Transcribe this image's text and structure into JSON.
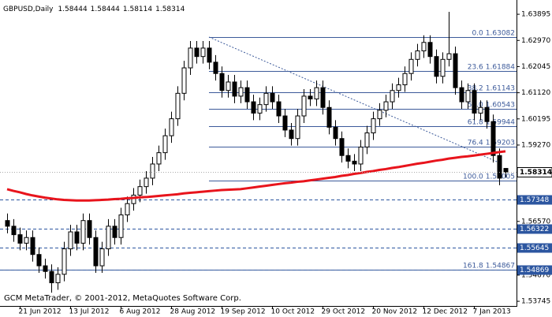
{
  "chart_data": {
    "type": "candlestick",
    "title": "GBPUSD,Daily",
    "footer": "GCM MetaTrader, © 2001-2012, MetaQuotes Software Corp.",
    "categories": [
      null,
      null,
      "21 Jun 2012",
      null,
      null,
      null,
      null,
      null,
      null,
      null,
      "13 Jul 2012",
      null,
      null,
      null,
      null,
      null,
      null,
      null,
      "6 Aug 2012",
      null,
      null,
      null,
      null,
      null,
      null,
      null,
      "28 Aug 2012",
      null,
      null,
      null,
      null,
      null,
      null,
      null,
      "19 Sep 2012",
      null,
      null,
      null,
      null,
      null,
      null,
      null,
      "10 Oct 2012",
      null,
      null,
      null,
      null,
      null,
      null,
      null,
      "29 Oct 2012",
      null,
      null,
      null,
      null,
      null,
      null,
      null,
      "20 Nov 2012",
      null,
      null,
      null,
      null,
      null,
      null,
      null,
      "12 Dec 2012",
      null,
      null,
      null,
      null,
      null,
      null,
      null,
      "7 Jan 2013",
      null,
      null,
      null,
      null,
      null
    ],
    "open": [
      1.566,
      1.564,
      1.561,
      1.558,
      1.56,
      1.554,
      1.55,
      1.548,
      1.544,
      1.547,
      1.556,
      1.562,
      1.558,
      1.566,
      1.56,
      1.55,
      1.556,
      1.564,
      1.56,
      1.568,
      1.572,
      1.575,
      1.578,
      1.581,
      1.586,
      1.59,
      1.596,
      1.602,
      1.611,
      1.62,
      1.627,
      1.624,
      1.627,
      1.622,
      1.618,
      1.612,
      1.615,
      1.61,
      1.613,
      1.608,
      1.604,
      1.607,
      1.611,
      1.608,
      1.603,
      1.598,
      1.595,
      1.603,
      1.61,
      1.609,
      1.613,
      1.606,
      1.599,
      1.595,
      1.589,
      1.587,
      1.586,
      1.592,
      1.597,
      1.602,
      1.605,
      1.608,
      1.612,
      1.614,
      1.618,
      1.623,
      1.626,
      1.629,
      1.624,
      1.617,
      1.623,
      1.625,
      1.613,
      1.608,
      1.612,
      1.604,
      1.606,
      1.601,
      1.589,
      1.58444
    ],
    "high": [
      1.5685,
      1.5665,
      1.5635,
      1.5625,
      1.5625,
      1.5565,
      1.5525,
      1.5505,
      1.5495,
      1.5585,
      1.5645,
      1.5645,
      1.5685,
      1.5685,
      1.5625,
      1.5585,
      1.5665,
      1.5665,
      1.5705,
      1.5745,
      1.5775,
      1.5805,
      1.5835,
      1.5885,
      1.5925,
      1.5985,
      1.6045,
      1.6135,
      1.6225,
      1.6295,
      1.6295,
      1.6295,
      1.6295,
      1.6245,
      1.6205,
      1.6175,
      1.6175,
      1.6155,
      1.6155,
      1.6105,
      1.6095,
      1.6135,
      1.6135,
      1.6105,
      1.6055,
      1.6005,
      1.6055,
      1.6125,
      1.6125,
      1.6155,
      1.6155,
      1.6085,
      1.6015,
      1.5975,
      1.5915,
      1.5895,
      1.5945,
      1.5995,
      1.6045,
      1.6075,
      1.6105,
      1.6145,
      1.6165,
      1.6205,
      1.6255,
      1.6285,
      1.6315,
      1.6315,
      1.6265,
      1.6255,
      1.6398,
      1.6275,
      1.6155,
      1.6145,
      1.6145,
      1.6085,
      1.6085,
      1.6035,
      1.5915,
      1.58444
    ],
    "low": [
      1.5615,
      1.5585,
      1.5555,
      1.5555,
      1.5515,
      1.5475,
      1.5455,
      1.5405,
      1.5415,
      1.5445,
      1.5535,
      1.5555,
      1.5555,
      1.5575,
      1.5475,
      1.5475,
      1.5535,
      1.5575,
      1.5575,
      1.5655,
      1.5695,
      1.5725,
      1.5755,
      1.5785,
      1.5835,
      1.5875,
      1.5935,
      1.5995,
      1.6085,
      1.6175,
      1.6215,
      1.6215,
      1.6195,
      1.6155,
      1.6095,
      1.6095,
      1.6075,
      1.6075,
      1.6055,
      1.6015,
      1.6015,
      1.6045,
      1.6055,
      1.6005,
      1.5955,
      1.5925,
      1.5925,
      1.6005,
      1.6065,
      1.6065,
      1.6035,
      1.5965,
      1.5925,
      1.5865,
      1.5845,
      1.5835,
      1.5835,
      1.5895,
      1.5945,
      1.5995,
      1.6025,
      1.6055,
      1.6095,
      1.6115,
      1.6155,
      1.6205,
      1.6235,
      1.6215,
      1.6145,
      1.6145,
      1.6205,
      1.6105,
      1.6055,
      1.6055,
      1.6015,
      1.6015,
      1.5985,
      1.5865,
      1.5785,
      1.58114
    ],
    "close": [
      1.564,
      1.561,
      1.558,
      1.56,
      1.554,
      1.55,
      1.548,
      1.544,
      1.547,
      1.556,
      1.562,
      1.558,
      1.566,
      1.56,
      1.55,
      1.556,
      1.564,
      1.56,
      1.568,
      1.572,
      1.575,
      1.578,
      1.581,
      1.586,
      1.59,
      1.596,
      1.602,
      1.611,
      1.62,
      1.627,
      1.624,
      1.627,
      1.622,
      1.618,
      1.612,
      1.615,
      1.61,
      1.613,
      1.608,
      1.604,
      1.607,
      1.611,
      1.608,
      1.603,
      1.598,
      1.595,
      1.603,
      1.61,
      1.609,
      1.613,
      1.606,
      1.599,
      1.595,
      1.589,
      1.587,
      1.586,
      1.592,
      1.597,
      1.602,
      1.605,
      1.608,
      1.612,
      1.614,
      1.618,
      1.623,
      1.626,
      1.629,
      1.624,
      1.617,
      1.623,
      1.625,
      1.613,
      1.608,
      1.612,
      1.604,
      1.606,
      1.601,
      1.589,
      1.581,
      1.58314
    ],
    "ma_values": [
      1.5771,
      1.5765,
      1.576,
      1.5754,
      1.5749,
      1.5745,
      1.5741,
      1.5738,
      1.5735,
      1.5733,
      1.5732,
      1.5731,
      1.5731,
      1.5731,
      1.5732,
      1.5733,
      1.5734,
      1.5736,
      1.5737,
      1.5739,
      1.574,
      1.5742,
      1.5743,
      1.5745,
      1.5747,
      1.5749,
      1.5751,
      1.5753,
      1.5756,
      1.5758,
      1.576,
      1.5762,
      1.5764,
      1.5766,
      1.5768,
      1.5769,
      1.577,
      1.5771,
      1.5774,
      1.5777,
      1.578,
      1.5783,
      1.5786,
      1.5789,
      1.5792,
      1.5794,
      1.5797,
      1.5799,
      1.5802,
      1.5805,
      1.5808,
      1.5811,
      1.5814,
      1.5818,
      1.5821,
      1.5825,
      1.5828,
      1.5832,
      1.5835,
      1.5839,
      1.5842,
      1.5846,
      1.5849,
      1.5853,
      1.5857,
      1.5861,
      1.5864,
      1.5868,
      1.5872,
      1.5875,
      1.5879,
      1.5882,
      1.5885,
      1.5887,
      1.589,
      1.5893,
      1.5896,
      1.5899,
      1.5902,
      1.5905
    ],
    "ma_color": "#e8141c",
    "fibonacci": [
      {
        "ratio": "0.0",
        "value": 1.63082
      },
      {
        "ratio": "23.6",
        "value": 1.61884
      },
      {
        "ratio": "38.2",
        "value": 1.61143
      },
      {
        "ratio": "50.0",
        "value": 1.60543
      },
      {
        "ratio": "61.8",
        "value": 1.59944
      },
      {
        "ratio": "76.4",
        "value": 1.59203
      },
      {
        "ratio": "100.0",
        "value": 1.58005
      },
      {
        "ratio": "161.8",
        "value": 1.54867
      }
    ],
    "fib_color": "#3c5a9a",
    "levels": [
      1.57348,
      1.56322,
      1.55645,
      1.54869
    ],
    "level_color": "#2c56a0",
    "ylim": [
      1.5358,
      1.6426
    ],
    "yticks": [
      1.63895,
      {
        "value": 1.6297,
        "label": "1.62970"
      },
      1.62045,
      {
        "value": 1.6112,
        "label": "1.61120"
      },
      1.60195,
      {
        "value": 1.5927,
        "label": "1.59270"
      },
      {
        "value": 1.5657,
        "label": "1.56570"
      },
      {
        "value": 1.5467,
        "label": "1.54670"
      },
      1.53745
    ]
  }
}
